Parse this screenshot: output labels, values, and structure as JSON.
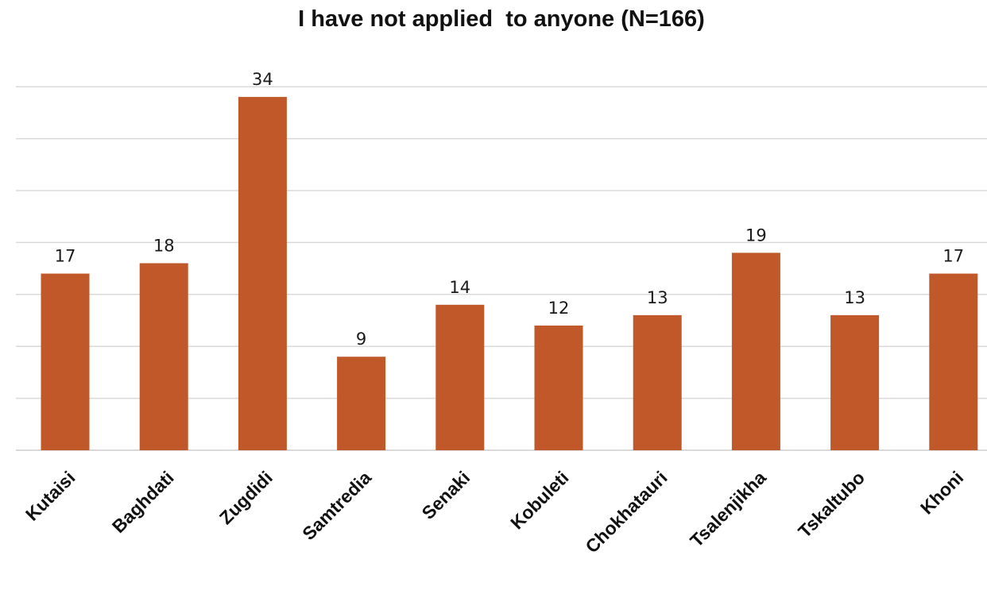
{
  "chart_data": {
    "type": "bar",
    "title": "I have not applied  to anyone (N=166)",
    "categories": [
      "Kutaisi",
      "Baghdati",
      "Zugdidi",
      "Samtredia",
      "Senaki",
      "Kobuleti",
      "Chokhatauri",
      "Tsalenjikha",
      "Tskaltubo",
      "Khoni"
    ],
    "values": [
      17,
      18,
      34,
      9,
      14,
      12,
      13,
      19,
      13,
      17
    ],
    "data_labels": [
      "17",
      "18",
      "34",
      "9",
      "14",
      "12",
      "13",
      "19",
      "13",
      "17"
    ],
    "xlabel": "",
    "ylabel": "",
    "ylim": [
      0,
      35
    ],
    "grid": true,
    "legend": "none",
    "bar_color": "#c0582a"
  }
}
